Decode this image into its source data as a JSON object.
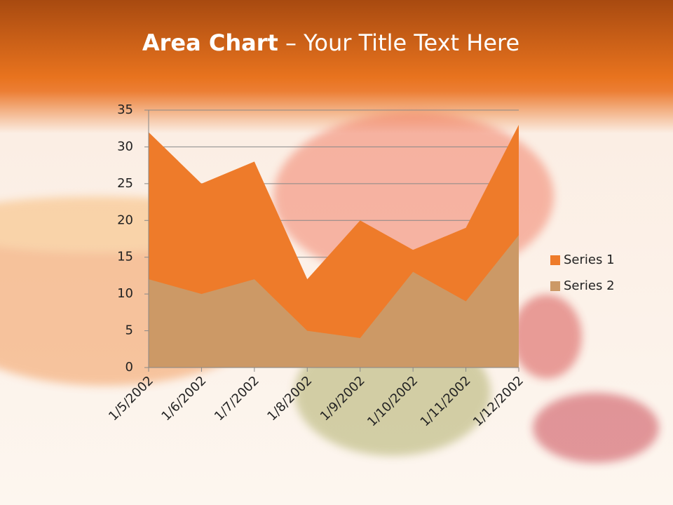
{
  "chart_data": {
    "type": "area",
    "title": [
      "Area Chart",
      "– Your Title Text Here"
    ],
    "categories": [
      "1/5/2002",
      "1/6/2002",
      "1/7/2002",
      "1/8/2002",
      "1/9/2002",
      "1/10/2002",
      "1/11/2002",
      "1/12/2002"
    ],
    "series": [
      {
        "name": "Series 1",
        "color": "#ee7b2a",
        "values": [
          32,
          25,
          28,
          12,
          20,
          16,
          19,
          33
        ]
      },
      {
        "name": "Series 2",
        "color": "#cc9966",
        "values": [
          12,
          10,
          12,
          5,
          4,
          13,
          9,
          18
        ]
      }
    ],
    "ylim": [
      0,
      35
    ],
    "yticks": [
      0,
      5,
      10,
      15,
      20,
      25,
      30,
      35
    ],
    "grid": true,
    "legend": "right"
  }
}
